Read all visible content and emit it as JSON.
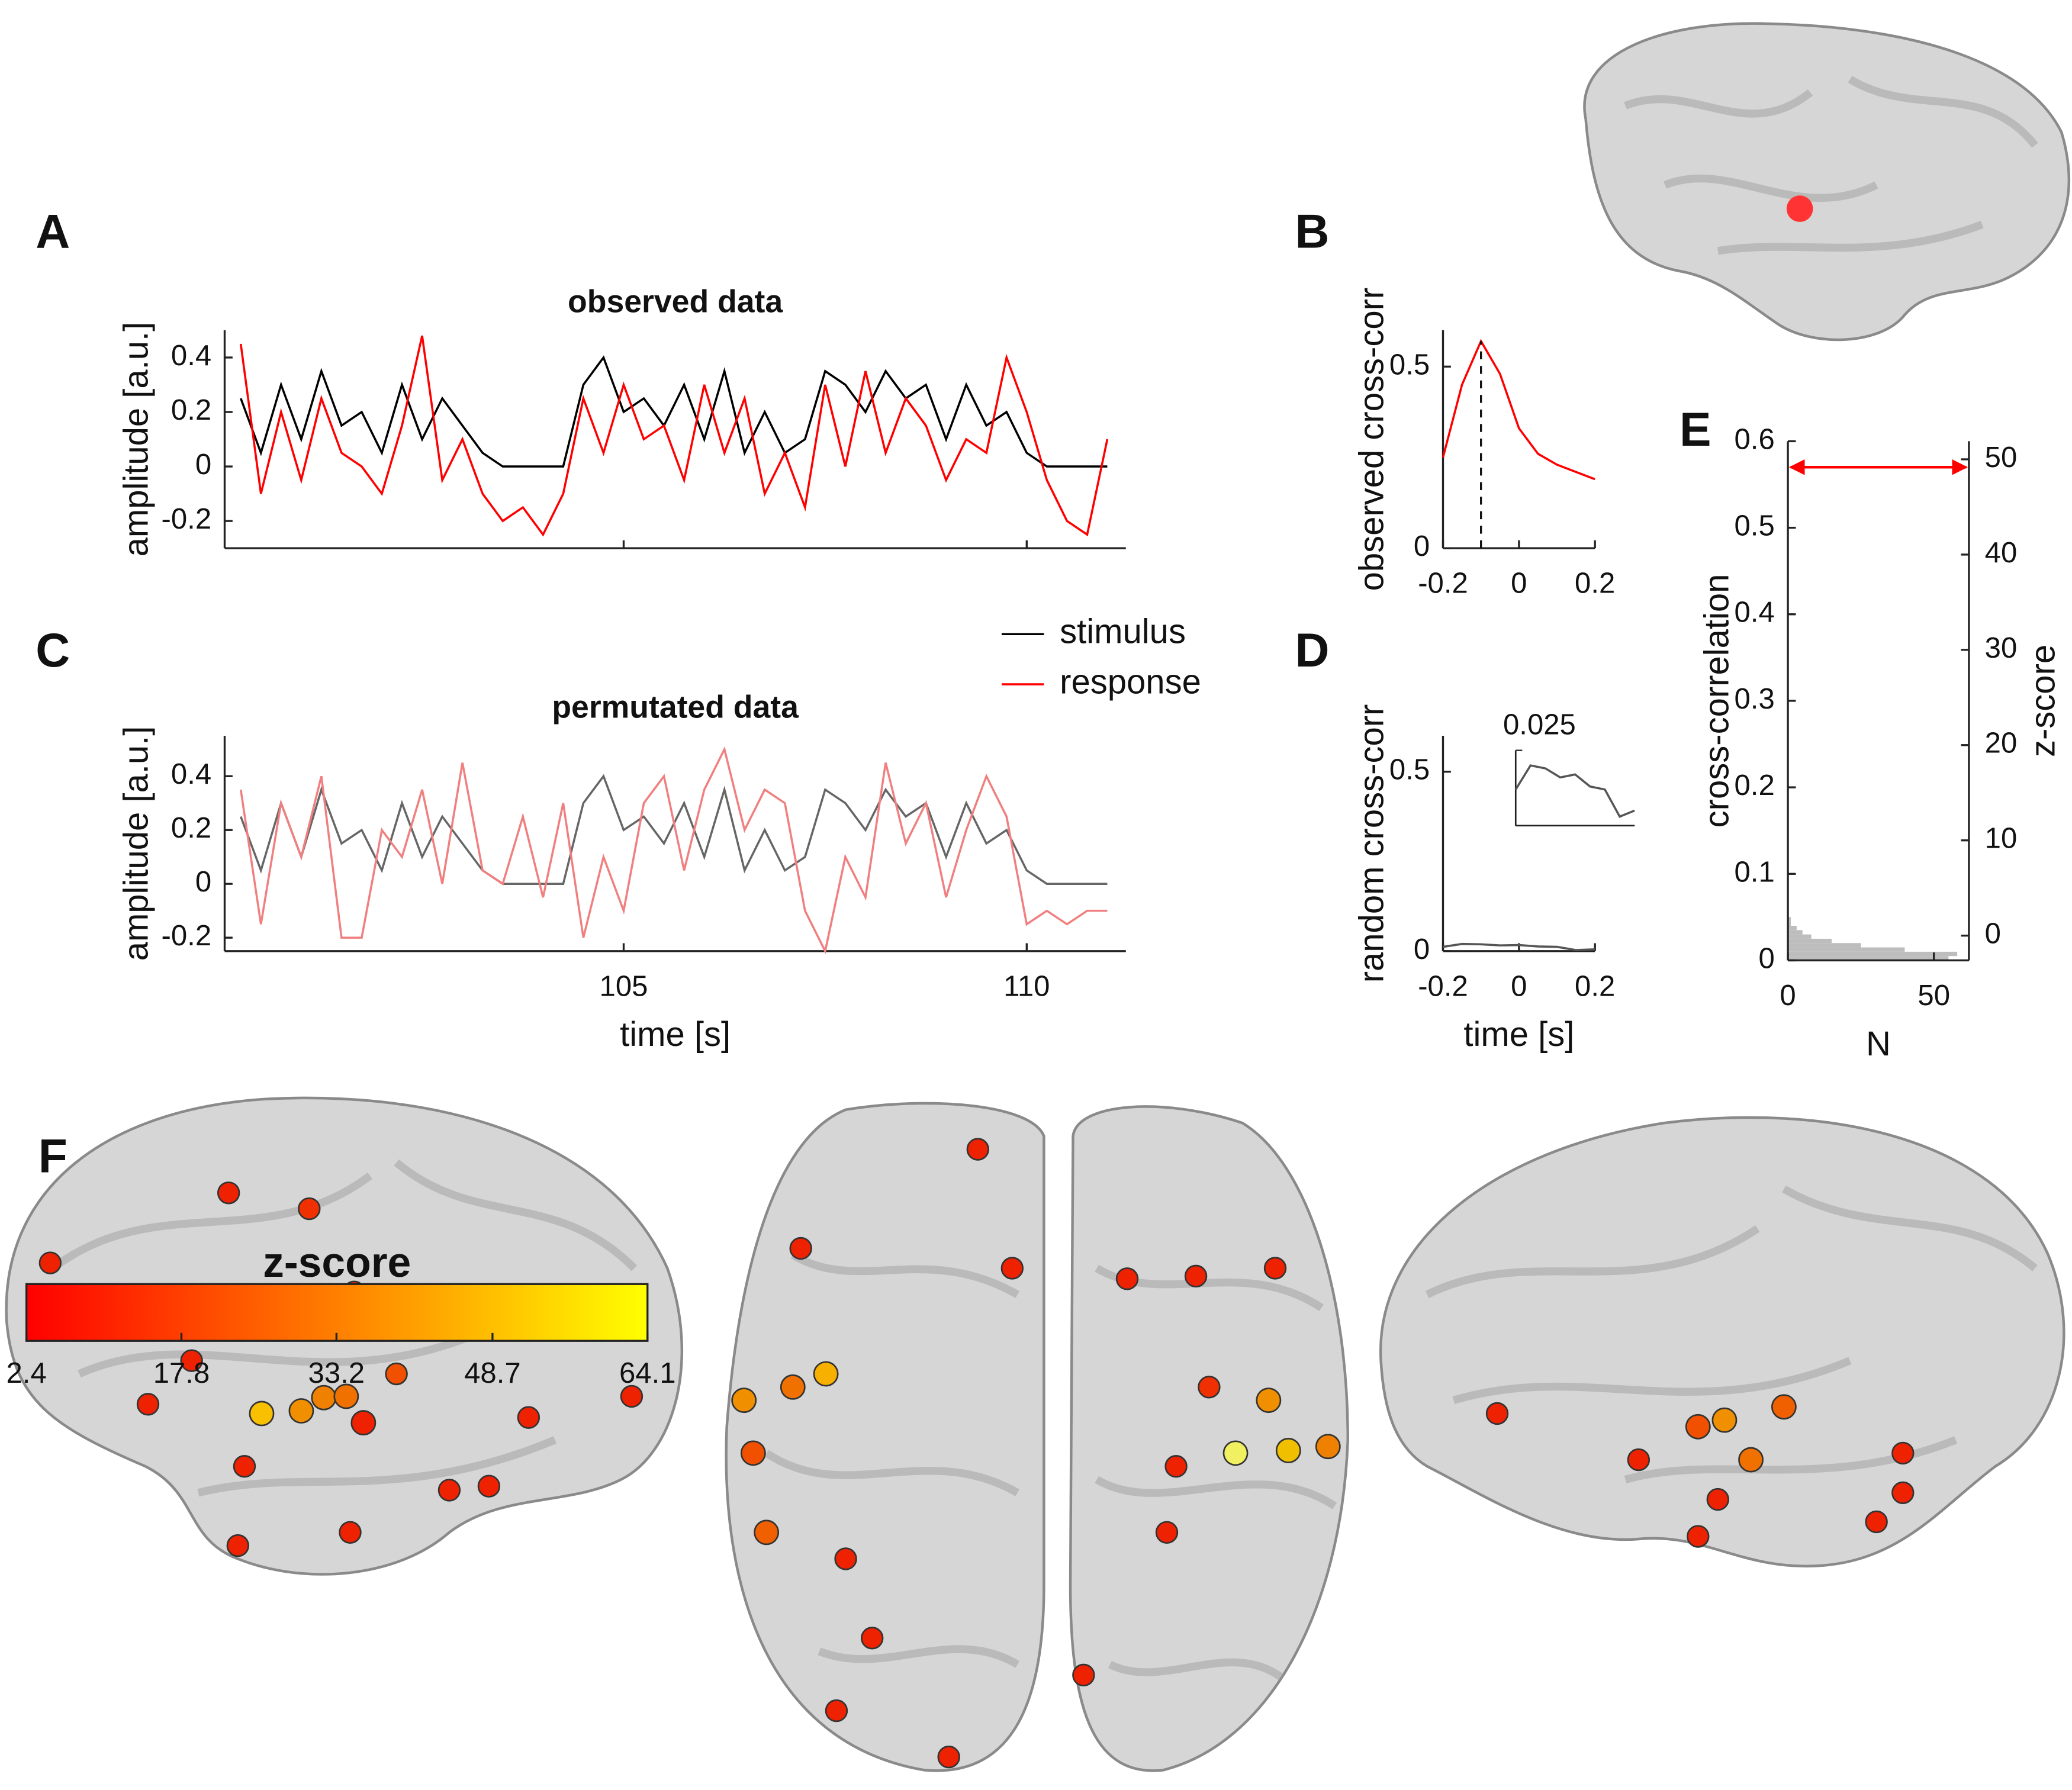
{
  "chart_data": [
    {
      "type": "line",
      "panel": "A",
      "title": "observed data",
      "ylabel": "amplitude [a.u.]",
      "xlim": [
        100.05,
        111.23
      ],
      "xticks": [
        105,
        110
      ],
      "xtick_labels": false,
      "ylim": [
        -0.3,
        0.5
      ],
      "yticks": [
        -0.2,
        0,
        0.2,
        0.4
      ],
      "x": [
        100.25,
        100.5,
        100.75,
        101,
        101.25,
        101.5,
        101.75,
        102,
        102.25,
        102.5,
        102.75,
        103,
        103.25,
        103.5,
        103.75,
        104,
        104.25,
        104.5,
        104.75,
        105,
        105.25,
        105.5,
        105.75,
        106,
        106.25,
        106.5,
        106.75,
        107,
        107.25,
        107.5,
        107.75,
        108,
        108.25,
        108.5,
        108.75,
        109,
        109.25,
        109.5,
        109.75,
        110,
        110.25,
        110.5,
        110.75,
        111
      ],
      "series": [
        {
          "name": "stimulus",
          "color": "#000000",
          "values": [
            0.25,
            0.05,
            0.3,
            0.1,
            0.35,
            0.15,
            0.2,
            0.05,
            0.3,
            0.1,
            0.25,
            0.15,
            0.05,
            0,
            0,
            0,
            0,
            0.3,
            0.4,
            0.2,
            0.25,
            0.15,
            0.3,
            0.1,
            0.35,
            0.05,
            0.2,
            0.05,
            0.1,
            0.35,
            0.3,
            0.2,
            0.35,
            0.25,
            0.3,
            0.1,
            0.3,
            0.15,
            0.2,
            0.05,
            0,
            0,
            0,
            0
          ]
        },
        {
          "name": "response",
          "color": "#ff0000",
          "values": [
            0.45,
            -0.1,
            0.2,
            -0.05,
            0.25,
            0.05,
            0,
            -0.1,
            0.15,
            0.48,
            -0.05,
            0.1,
            -0.1,
            -0.2,
            -0.15,
            -0.25,
            -0.1,
            0.25,
            0.05,
            0.3,
            0.1,
            0.15,
            -0.05,
            0.3,
            0.05,
            0.25,
            -0.1,
            0.05,
            -0.15,
            0.3,
            0,
            0.35,
            0.05,
            0.25,
            0.15,
            -0.05,
            0.1,
            0.05,
            0.4,
            0.2,
            -0.05,
            -0.2,
            -0.25,
            0.1
          ]
        }
      ]
    },
    {
      "type": "line",
      "panel": "C",
      "title": "permutated data",
      "ylabel": "amplitude [a.u.]",
      "xlabel": "time [s]",
      "legend": "upper right",
      "xlim": [
        100.05,
        111.23
      ],
      "xticks": [
        105,
        110
      ],
      "ylim": [
        -0.25,
        0.55
      ],
      "yticks": [
        -0.2,
        0,
        0.2,
        0.4
      ],
      "x": [
        100.25,
        100.5,
        100.75,
        101,
        101.25,
        101.5,
        101.75,
        102,
        102.25,
        102.5,
        102.75,
        103,
        103.25,
        103.5,
        103.75,
        104,
        104.25,
        104.5,
        104.75,
        105,
        105.25,
        105.5,
        105.75,
        106,
        106.25,
        106.5,
        106.75,
        107,
        107.25,
        107.5,
        107.75,
        108,
        108.25,
        108.5,
        108.75,
        109,
        109.25,
        109.5,
        109.75,
        110,
        110.25,
        110.5,
        110.75,
        111
      ],
      "series": [
        {
          "name": "stimulus",
          "color": "#666666",
          "values": [
            0.25,
            0.05,
            0.3,
            0.1,
            0.35,
            0.15,
            0.2,
            0.05,
            0.3,
            0.1,
            0.25,
            0.15,
            0.05,
            0,
            0,
            0,
            0,
            0.3,
            0.4,
            0.2,
            0.25,
            0.15,
            0.3,
            0.1,
            0.35,
            0.05,
            0.2,
            0.05,
            0.1,
            0.35,
            0.3,
            0.2,
            0.35,
            0.25,
            0.3,
            0.1,
            0.3,
            0.15,
            0.2,
            0.05,
            0,
            0,
            0,
            0
          ]
        },
        {
          "name": "response",
          "color": "#f08080",
          "values": [
            0.35,
            -0.15,
            0.3,
            0.1,
            0.4,
            -0.2,
            -0.2,
            0.2,
            0.1,
            0.35,
            0,
            0.45,
            0.05,
            0,
            0.25,
            -0.05,
            0.3,
            -0.2,
            0.1,
            -0.1,
            0.3,
            0.4,
            0.05,
            0.35,
            0.5,
            0.2,
            0.35,
            0.3,
            -0.1,
            -0.25,
            0.1,
            -0.05,
            0.45,
            0.15,
            0.3,
            -0.05,
            0.2,
            0.4,
            0.25,
            -0.15,
            -0.1,
            -0.15,
            -0.1,
            -0.1
          ]
        }
      ]
    },
    {
      "type": "line",
      "panel": "B",
      "ylabel": "observed cross-corr",
      "marker_x": -0.1,
      "xlim": [
        -0.2,
        0.2
      ],
      "xticks": [
        -0.2,
        0,
        0.2
      ],
      "ylim": [
        0,
        0.6
      ],
      "yticks": [
        0,
        0.5
      ],
      "x": [
        -0.2,
        -0.15,
        -0.1,
        -0.05,
        0,
        0.05,
        0.1,
        0.15,
        0.2
      ],
      "series": [
        {
          "name": "observed",
          "color": "#ff0000",
          "values": [
            0.25,
            0.45,
            0.57,
            0.48,
            0.33,
            0.26,
            0.23,
            0.21,
            0.19
          ]
        }
      ]
    },
    {
      "type": "line",
      "panel": "D",
      "ylabel": "random cross-corr",
      "xlabel": "time [s]",
      "xlim": [
        -0.2,
        0.2
      ],
      "xticks": [
        -0.2,
        0,
        0.2
      ],
      "ylim": [
        0,
        0.6
      ],
      "yticks": [
        0,
        0.5
      ],
      "x": [
        -0.2,
        -0.15,
        -0.1,
        -0.05,
        0,
        0.05,
        0.1,
        0.15,
        0.2
      ],
      "series": [
        {
          "name": "random",
          "color": "#555555",
          "values": [
            0.012,
            0.02,
            0.019,
            0.016,
            0.017,
            0.013,
            0.012,
            0.003,
            0.005
          ]
        }
      ],
      "inset": {
        "ylim": [
          0,
          0.025
        ],
        "yticks": [
          0.025
        ]
      }
    },
    {
      "type": "histogram",
      "panel": "E",
      "orientation": "horizontal",
      "ylabel": "cross-correlation",
      "y2label": "z-score",
      "xlabel": "N",
      "color": "#bdbdbd",
      "arrow_y": 0.57,
      "arrow_color": "#ff0000",
      "xlim": [
        0,
        62
      ],
      "xticks": [
        0,
        50
      ],
      "ylim": [
        0,
        0.6
      ],
      "yticks": [
        0,
        0.1,
        0.2,
        0.3,
        0.4,
        0.5,
        0.6
      ],
      "y2lim": [
        -2.6,
        51.9
      ],
      "y2ticks": [
        0,
        10,
        20,
        30,
        40,
        50
      ],
      "bins": [
        0,
        0.005,
        0.01,
        0.015,
        0.02,
        0.025,
        0.03,
        0.035,
        0.04,
        0.045,
        0.05
      ],
      "counts": [
        55,
        58,
        40,
        25,
        15,
        8,
        5,
        3,
        1,
        1
      ]
    },
    {
      "type": "colorbar",
      "panel": "F",
      "title": "z-score",
      "colors": [
        "#ff0000",
        "#ffff00"
      ],
      "xlim": [
        2.4,
        64.1
      ],
      "xticks": [
        2.4,
        17.8,
        33.2,
        48.7,
        64.1
      ]
    }
  ]
}
